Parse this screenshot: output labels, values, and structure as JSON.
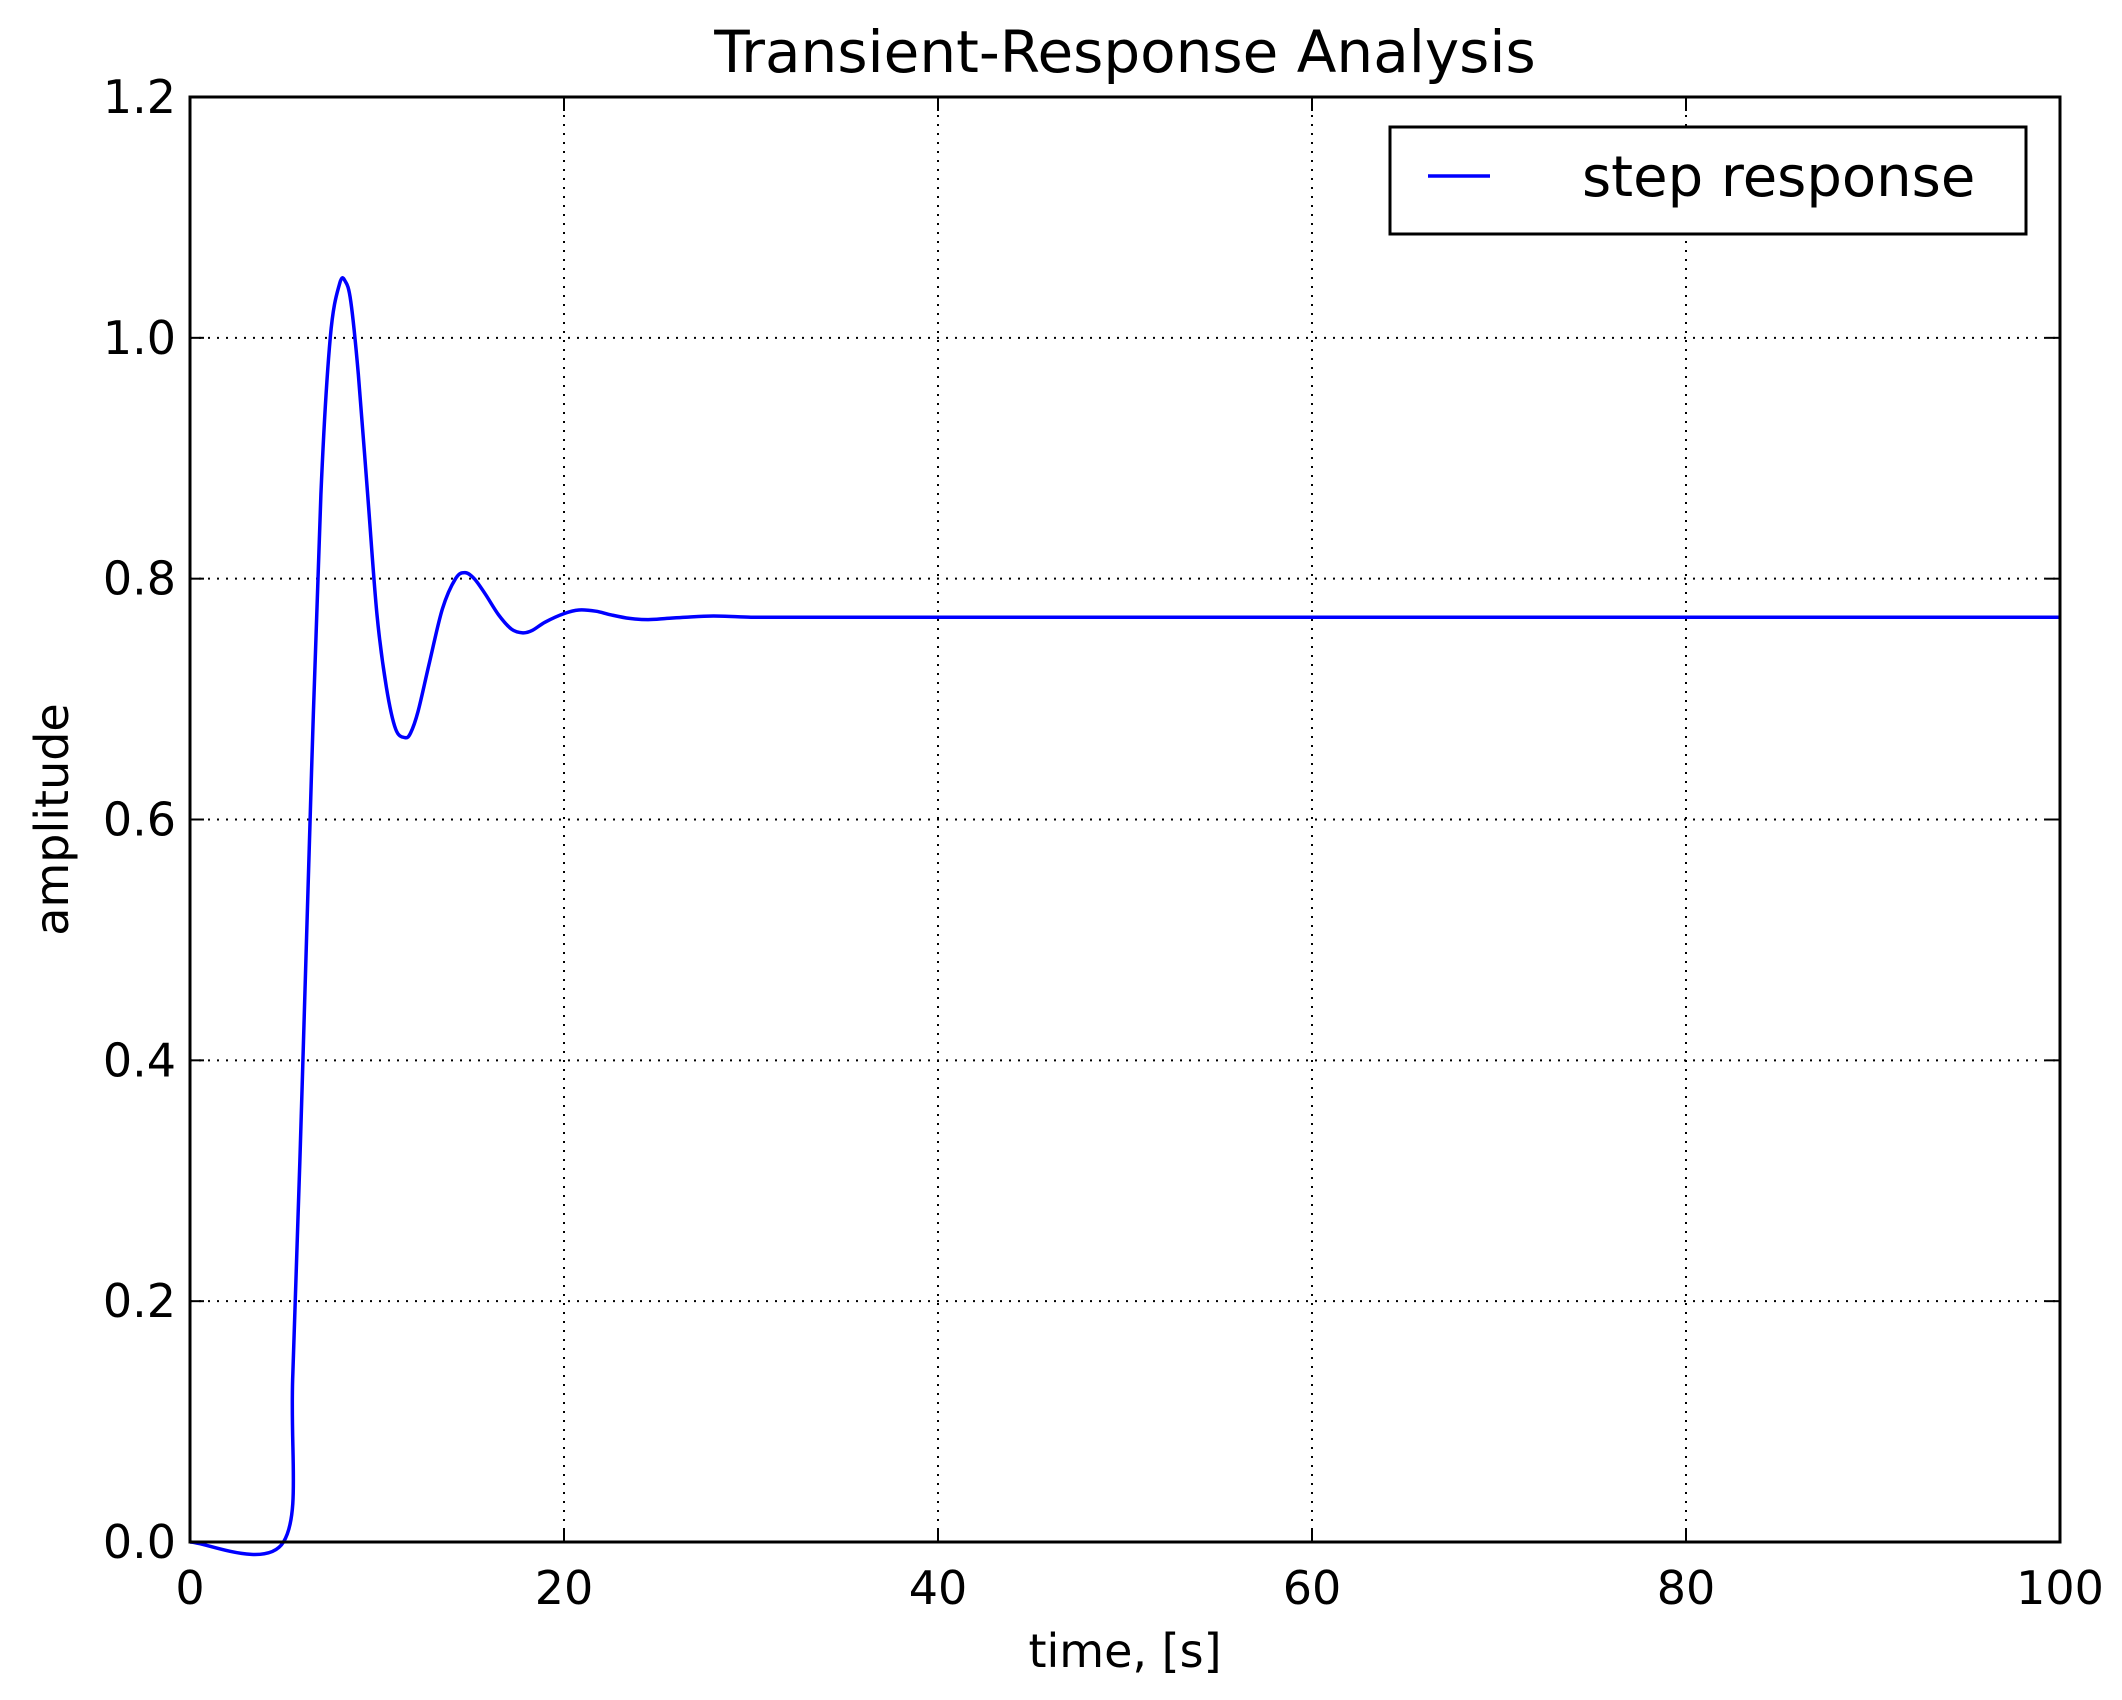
{
  "chart_data": {
    "type": "line",
    "title": "Transient-Response Analysis",
    "xlabel": "time, [s]",
    "ylabel": "amplitude",
    "xlim": [
      0,
      100
    ],
    "ylim": [
      0,
      1.2
    ],
    "x_ticks": [
      0,
      20,
      40,
      60,
      80,
      100
    ],
    "y_ticks": [
      0.0,
      0.2,
      0.4,
      0.6,
      0.8,
      1.0,
      1.2
    ],
    "x_tick_labels": [
      "0",
      "20",
      "40",
      "60",
      "80",
      "100"
    ],
    "y_tick_labels": [
      "0.0",
      "0.2",
      "0.4",
      "0.6",
      "0.8",
      "1.0",
      "1.2"
    ],
    "grid": true,
    "legend_position": "top-right",
    "series": [
      {
        "name": "step response",
        "color": "#0000ff",
        "x": [
          0,
          5,
          5.5,
          6,
          6.5,
          7,
          7.5,
          8,
          8.3,
          8.6,
          9,
          9.5,
          10,
          10.5,
          11,
          11.5,
          11.8,
          12.2,
          12.8,
          13.5,
          14.2,
          14.7,
          15.2,
          15.8,
          16.5,
          17.2,
          17.8,
          18.3,
          19,
          20,
          20.8,
          21.7,
          22.5,
          23.5,
          24.5,
          25.5,
          26.5,
          28,
          30,
          31.5,
          34,
          37,
          40,
          50,
          60,
          70,
          80,
          90,
          100
        ],
        "y": [
          0.0,
          0.0,
          0.14,
          0.38,
          0.64,
          0.87,
          1.0,
          1.045,
          1.047,
          1.03,
          0.97,
          0.87,
          0.77,
          0.71,
          0.675,
          0.668,
          0.672,
          0.69,
          0.73,
          0.775,
          0.8,
          0.805,
          0.8,
          0.787,
          0.77,
          0.758,
          0.755,
          0.757,
          0.764,
          0.771,
          0.774,
          0.773,
          0.77,
          0.767,
          0.766,
          0.767,
          0.768,
          0.769,
          0.768,
          0.768,
          0.768,
          0.768,
          0.768,
          0.768,
          0.768,
          0.768,
          0.768,
          0.768,
          0.768
        ]
      }
    ]
  }
}
